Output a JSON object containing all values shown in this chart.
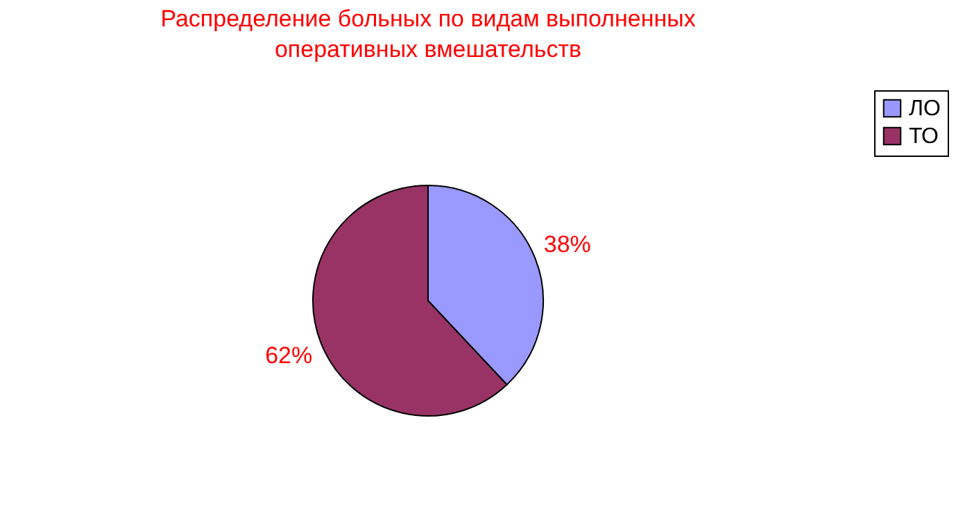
{
  "chart_data": {
    "type": "pie",
    "title": "Распределение больных по видам выполненных\nоперативных вмешательств",
    "categories": [
      "ЛО",
      "ТО"
    ],
    "values": [
      38,
      62
    ],
    "colors": [
      "#9999ff",
      "#993366"
    ],
    "value_labels": [
      "38%",
      "62%"
    ],
    "legend": "right"
  }
}
